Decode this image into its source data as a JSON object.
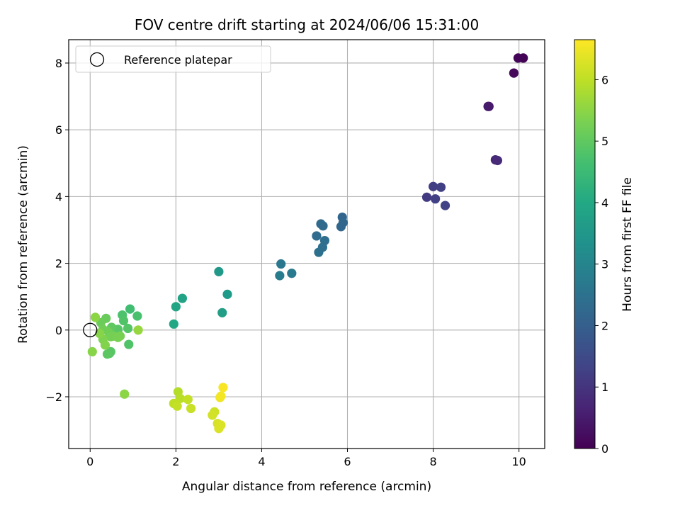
{
  "chart_data": {
    "type": "scatter",
    "title": "FOV centre drift starting at 2024/06/06 15:31:00",
    "xlabel": "Angular distance from reference (arcmin)",
    "ylabel": "Rotation from reference (arcmin)",
    "xlim": [
      -0.5,
      10.6
    ],
    "ylim": [
      -3.55,
      8.7
    ],
    "xticks": [
      "0",
      "2",
      "4",
      "6",
      "8",
      "10"
    ],
    "yticks": [
      "−2",
      "0",
      "2",
      "4",
      "6",
      "8"
    ],
    "grid": true,
    "legend": {
      "placement": "top-left",
      "entries": [
        "Reference platepar"
      ]
    },
    "colorbar": {
      "label": "Hours from first FF file",
      "range": [
        0,
        6.65
      ],
      "ticks": [
        "0",
        "1",
        "2",
        "3",
        "4",
        "5",
        "6"
      ],
      "colormap": "viridis"
    },
    "reference_point": {
      "x": 0,
      "y": 0
    },
    "points": [
      {
        "x": 10.1,
        "y": 8.15,
        "c": 0.05
      },
      {
        "x": 9.98,
        "y": 8.15,
        "c": 0.08
      },
      {
        "x": 9.88,
        "y": 7.7,
        "c": 0.12
      },
      {
        "x": 9.28,
        "y": 6.7,
        "c": 0.45
      },
      {
        "x": 9.3,
        "y": 6.7,
        "c": 0.48
      },
      {
        "x": 9.45,
        "y": 5.1,
        "c": 0.75
      },
      {
        "x": 9.5,
        "y": 5.08,
        "c": 0.78
      },
      {
        "x": 7.85,
        "y": 3.98,
        "c": 1.15
      },
      {
        "x": 8.0,
        "y": 4.3,
        "c": 1.2
      },
      {
        "x": 8.05,
        "y": 3.93,
        "c": 1.25
      },
      {
        "x": 8.18,
        "y": 4.28,
        "c": 1.25
      },
      {
        "x": 8.28,
        "y": 3.73,
        "c": 1.3
      },
      {
        "x": 5.88,
        "y": 3.38,
        "c": 2.15
      },
      {
        "x": 5.9,
        "y": 3.22,
        "c": 2.2
      },
      {
        "x": 5.85,
        "y": 3.1,
        "c": 2.2
      },
      {
        "x": 5.38,
        "y": 3.18,
        "c": 2.3
      },
      {
        "x": 5.43,
        "y": 3.12,
        "c": 2.3
      },
      {
        "x": 5.28,
        "y": 2.82,
        "c": 2.35
      },
      {
        "x": 5.47,
        "y": 2.68,
        "c": 2.4
      },
      {
        "x": 5.42,
        "y": 2.48,
        "c": 2.4
      },
      {
        "x": 5.33,
        "y": 2.33,
        "c": 2.45
      },
      {
        "x": 4.45,
        "y": 1.98,
        "c": 2.65
      },
      {
        "x": 4.7,
        "y": 1.7,
        "c": 2.7
      },
      {
        "x": 4.42,
        "y": 1.63,
        "c": 2.75
      },
      {
        "x": 3.0,
        "y": 1.75,
        "c": 3.55
      },
      {
        "x": 3.2,
        "y": 1.07,
        "c": 3.6
      },
      {
        "x": 3.08,
        "y": 0.52,
        "c": 3.7
      },
      {
        "x": 2.15,
        "y": 0.95,
        "c": 3.85
      },
      {
        "x": 2.0,
        "y": 0.7,
        "c": 3.9
      },
      {
        "x": 1.95,
        "y": 0.18,
        "c": 3.95
      },
      {
        "x": 0.93,
        "y": 0.63,
        "c": 4.6
      },
      {
        "x": 1.1,
        "y": 0.42,
        "c": 4.7
      },
      {
        "x": 0.75,
        "y": 0.45,
        "c": 4.75
      },
      {
        "x": 0.78,
        "y": 0.28,
        "c": 4.8
      },
      {
        "x": 0.88,
        "y": 0.05,
        "c": 4.85
      },
      {
        "x": 0.65,
        "y": 0.02,
        "c": 4.9
      },
      {
        "x": 0.9,
        "y": -0.43,
        "c": 4.8
      },
      {
        "x": 0.45,
        "y": -0.7,
        "c": 4.85
      },
      {
        "x": 0.48,
        "y": -0.65,
        "c": 4.9
      },
      {
        "x": 0.4,
        "y": -0.72,
        "c": 4.95
      },
      {
        "x": 0.5,
        "y": 0.08,
        "c": 5.0
      },
      {
        "x": 0.37,
        "y": 0.35,
        "c": 5.1
      },
      {
        "x": 0.25,
        "y": 0.22,
        "c": 5.15
      },
      {
        "x": 0.3,
        "y": 0.02,
        "c": 5.2
      },
      {
        "x": 0.42,
        "y": -0.05,
        "c": 5.2
      },
      {
        "x": 0.55,
        "y": -0.18,
        "c": 5.25
      },
      {
        "x": 0.48,
        "y": -0.2,
        "c": 5.25
      },
      {
        "x": 0.7,
        "y": -0.18,
        "c": 5.3
      },
      {
        "x": 0.65,
        "y": -0.22,
        "c": 5.3
      },
      {
        "x": 0.3,
        "y": -0.28,
        "c": 5.35
      },
      {
        "x": 0.35,
        "y": -0.45,
        "c": 5.4
      },
      {
        "x": 0.22,
        "y": -0.1,
        "c": 5.45
      },
      {
        "x": 0.12,
        "y": 0.38,
        "c": 5.5
      },
      {
        "x": 0.05,
        "y": -0.65,
        "c": 5.45
      },
      {
        "x": 1.12,
        "y": 0.0,
        "c": 5.6
      },
      {
        "x": 0.8,
        "y": -1.92,
        "c": 5.5
      },
      {
        "x": 2.05,
        "y": -1.85,
        "c": 5.9
      },
      {
        "x": 2.1,
        "y": -2.05,
        "c": 5.95
      },
      {
        "x": 2.0,
        "y": -2.2,
        "c": 6.0
      },
      {
        "x": 1.95,
        "y": -2.2,
        "c": 6.0
      },
      {
        "x": 2.03,
        "y": -2.28,
        "c": 6.05
      },
      {
        "x": 2.28,
        "y": -2.08,
        "c": 6.05
      },
      {
        "x": 2.35,
        "y": -2.35,
        "c": 6.1
      },
      {
        "x": 2.9,
        "y": -2.45,
        "c": 6.15
      },
      {
        "x": 2.85,
        "y": -2.55,
        "c": 6.2
      },
      {
        "x": 2.97,
        "y": -2.8,
        "c": 6.25
      },
      {
        "x": 3.05,
        "y": -2.85,
        "c": 6.3
      },
      {
        "x": 3.0,
        "y": -2.95,
        "c": 6.3
      },
      {
        "x": 3.03,
        "y": -2.02,
        "c": 6.5
      },
      {
        "x": 3.05,
        "y": -1.98,
        "c": 6.55
      },
      {
        "x": 3.1,
        "y": -1.72,
        "c": 6.6
      }
    ]
  }
}
